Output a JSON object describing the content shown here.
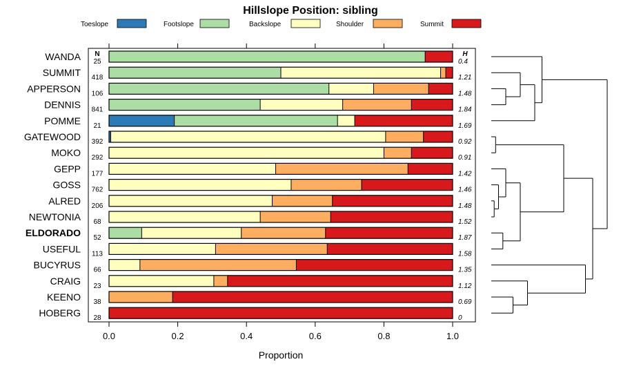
{
  "chart_data": {
    "type": "bar",
    "orientation": "horizontal-stacked",
    "title": "Hillslope Position: sibling",
    "xlabel": "Proportion",
    "xlim": [
      0,
      1
    ],
    "xticks": [
      "0.0",
      "0.2",
      "0.4",
      "0.6",
      "0.8",
      "1.0"
    ],
    "n_header": "N",
    "h_header": "H",
    "highlight": "ELDORADO",
    "series": [
      {
        "name": "Toeslope",
        "color": "#2c7bb6"
      },
      {
        "name": "Footslope",
        "color": "#abdda4"
      },
      {
        "name": "Backslope",
        "color": "#ffffbf"
      },
      {
        "name": "Shoulder",
        "color": "#fdae61"
      },
      {
        "name": "Summit",
        "color": "#d7191c"
      }
    ],
    "rows": [
      {
        "name": "WANDA",
        "n": "25",
        "h": "0.4",
        "values": [
          0,
          0.92,
          0,
          0,
          0.08
        ]
      },
      {
        "name": "SUMMIT",
        "n": "418",
        "h": "1.21",
        "values": [
          0,
          0.5,
          0.465,
          0.015,
          0.02
        ]
      },
      {
        "name": "APPERSON",
        "n": "106",
        "h": "1.48",
        "values": [
          0,
          0.64,
          0.13,
          0.16,
          0.07
        ]
      },
      {
        "name": "DENNIS",
        "n": "841",
        "h": "1.84",
        "values": [
          0,
          0.44,
          0.24,
          0.2,
          0.12
        ]
      },
      {
        "name": "POMME",
        "n": "21",
        "h": "1.69",
        "values": [
          0.19,
          0.475,
          0.05,
          0,
          0.285
        ]
      },
      {
        "name": "GATEWOOD",
        "n": "392",
        "h": "0.92",
        "values": [
          0.005,
          0,
          0.8,
          0.11,
          0.085
        ]
      },
      {
        "name": "MOKO",
        "n": "292",
        "h": "0.91",
        "values": [
          0,
          0,
          0.8,
          0.08,
          0.12
        ]
      },
      {
        "name": "GEPP",
        "n": "177",
        "h": "1.42",
        "values": [
          0,
          0,
          0.485,
          0.385,
          0.13
        ]
      },
      {
        "name": "GOSS",
        "n": "762",
        "h": "1.46",
        "values": [
          0,
          0,
          0.53,
          0.205,
          0.265
        ]
      },
      {
        "name": "ALRED",
        "n": "206",
        "h": "1.48",
        "values": [
          0,
          0,
          0.475,
          0.175,
          0.35
        ]
      },
      {
        "name": "NEWTONIA",
        "n": "68",
        "h": "1.52",
        "values": [
          0,
          0,
          0.44,
          0.205,
          0.355
        ]
      },
      {
        "name": "ELDORADO",
        "n": "52",
        "h": "1.87",
        "values": [
          0,
          0.095,
          0.29,
          0.245,
          0.37
        ]
      },
      {
        "name": "USEFUL",
        "n": "113",
        "h": "1.58",
        "values": [
          0,
          0,
          0.31,
          0.325,
          0.365
        ]
      },
      {
        "name": "BUCYRUS",
        "n": "66",
        "h": "1.35",
        "values": [
          0,
          0,
          0.09,
          0.455,
          0.455
        ]
      },
      {
        "name": "CRAIG",
        "n": "23",
        "h": "1.12",
        "values": [
          0,
          0,
          0.305,
          0.04,
          0.655
        ]
      },
      {
        "name": "KEENO",
        "n": "38",
        "h": "0.69",
        "values": [
          0,
          0,
          0,
          0.185,
          0.815
        ]
      },
      {
        "name": "HOBERG",
        "n": "28",
        "h": "0",
        "values": [
          0,
          0,
          0,
          0,
          1.0
        ]
      }
    ],
    "dendrogram": {
      "description": "hierarchical clustering of the 17 rows (leaf index = row index, top to bottom)",
      "merges": [
        {
          "a": 2,
          "b": 3,
          "height": 0.1
        },
        {
          "a": 1,
          "b": "m0",
          "height": 0.2
        },
        {
          "a": 4,
          "b": "m1",
          "height": 0.3
        },
        {
          "a": 0,
          "b": "m2",
          "height": 0.35
        },
        {
          "a": 5,
          "b": 6,
          "height": 0.03
        },
        {
          "a": 9,
          "b": 10,
          "height": 0.02
        },
        {
          "a": 8,
          "b": "m5",
          "height": 0.05
        },
        {
          "a": 7,
          "b": "m6",
          "height": 0.1
        },
        {
          "a": 11,
          "b": 12,
          "height": 0.08
        },
        {
          "a": "m7",
          "b": "m8",
          "height": 0.2
        },
        {
          "a": "m4",
          "b": "m9",
          "height": 0.5
        },
        {
          "a": 15,
          "b": 16,
          "height": 0.15
        },
        {
          "a": 14,
          "b": "m11",
          "height": 0.25
        },
        {
          "a": 13,
          "b": "m12",
          "height": 0.65
        },
        {
          "a": "m10",
          "b": "m13",
          "height": 0.7
        },
        {
          "a": "m3",
          "b": "m14",
          "height": 0.8
        }
      ]
    }
  }
}
